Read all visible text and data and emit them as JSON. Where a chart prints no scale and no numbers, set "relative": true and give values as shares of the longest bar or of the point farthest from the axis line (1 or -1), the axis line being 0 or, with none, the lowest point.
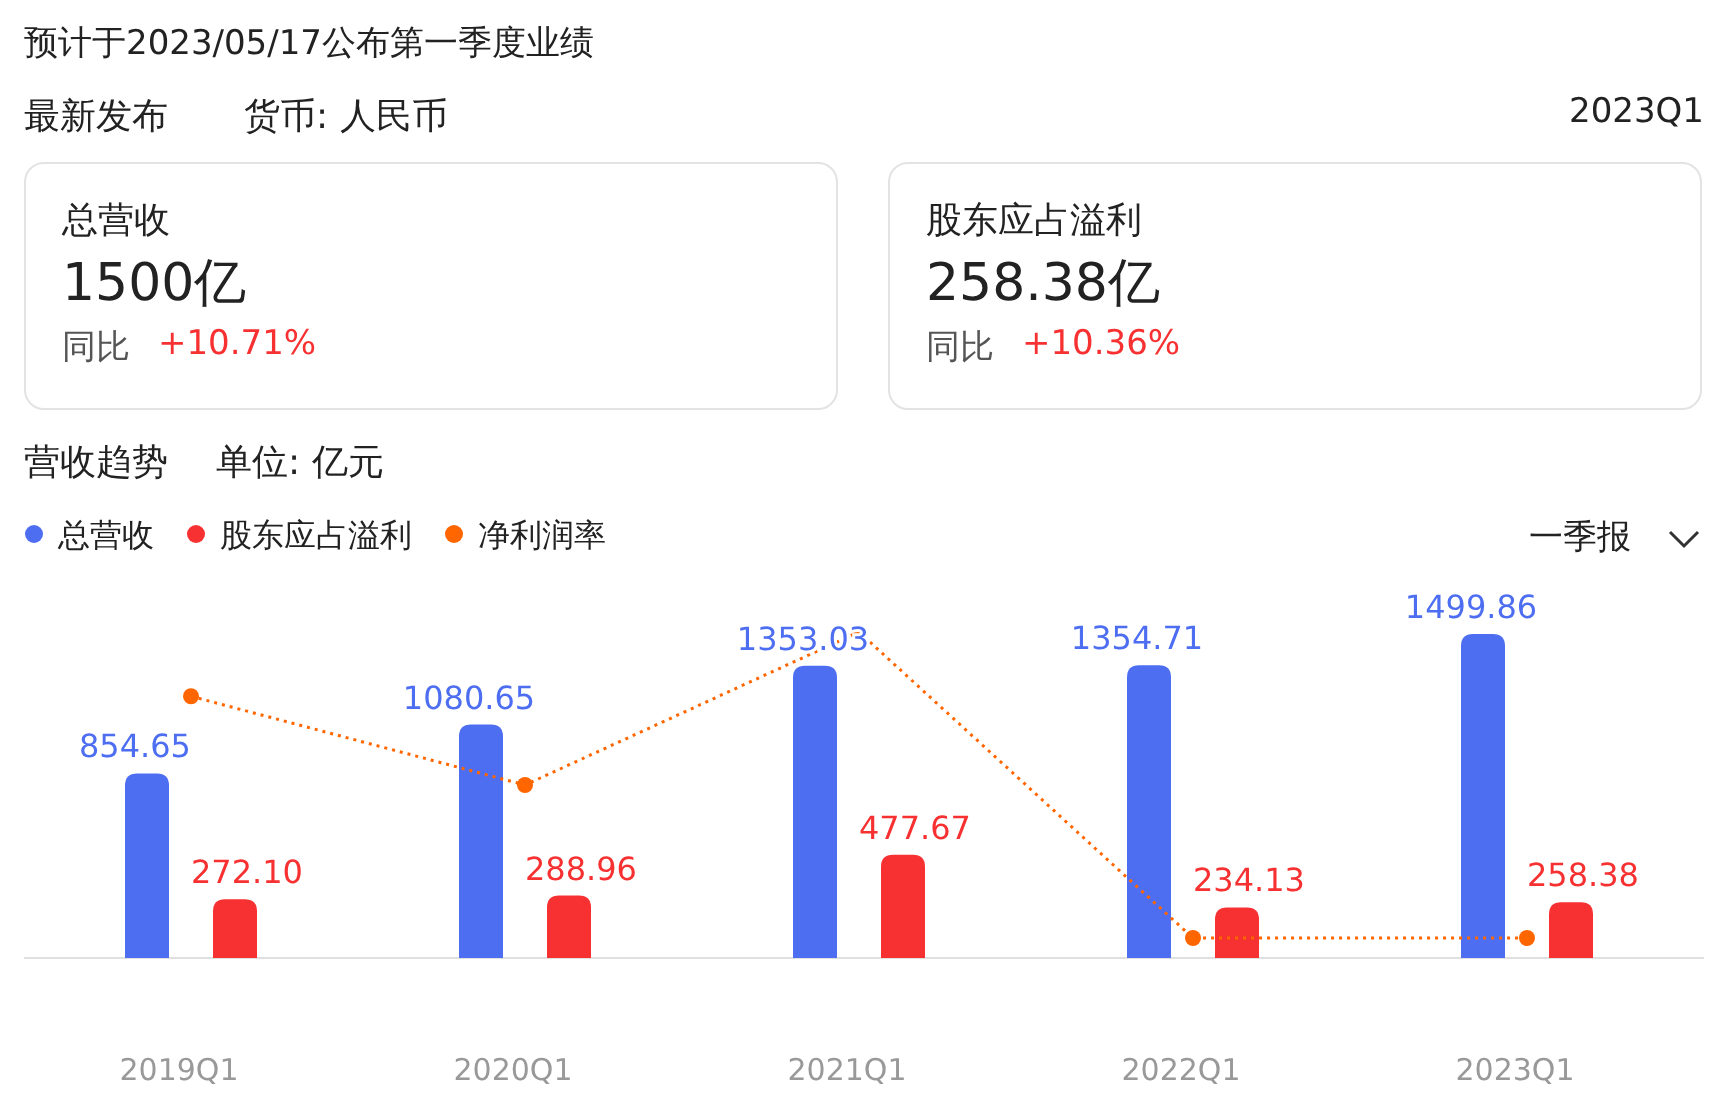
{
  "chart_data": [
    {
      "type": "other",
      "title": "预计于2023/05/17公布第一季度业绩",
      "annotations": [
        "最新发布",
        "货币: 人民币",
        "2023Q1"
      ]
    },
    {
      "type": "other",
      "title": "总营收",
      "annotations": [
        "1500亿",
        "同比",
        "+10.71%"
      ]
    },
    {
      "type": "other",
      "title": "股东应占溢利",
      "annotations": [
        "258.38亿",
        "同比",
        "+10.36%"
      ]
    },
    {
      "type": "bar",
      "title": "营收趋势",
      "subtitle": "单位: 亿元",
      "annotations": [
        "一季报"
      ],
      "legend": "top left",
      "categories": [
        "2019Q1",
        "2020Q1",
        "2021Q1",
        "2022Q1",
        "2023Q1"
      ],
      "series": [
        {
          "name": "总营收",
          "color": "#4e6ef2",
          "values": [
            854.65,
            1080.65,
            1353.03,
            1354.71,
            1499.86
          ],
          "value_labels": [
            "854.65",
            "1080.65",
            "1353.03",
            "1354.71",
            "1499.86"
          ]
        },
        {
          "name": "股东应占溢利",
          "color": "#f73131",
          "values": [
            272.1,
            288.96,
            477.67,
            234.13,
            258.38
          ],
          "value_labels": [
            "272.10",
            "288.96",
            "477.67",
            "234.13",
            "258.38"
          ]
        }
      ]
    },
    {
      "type": "line",
      "relative": true,
      "legend": "top left",
      "line_style": "dotted",
      "marker": "circle",
      "series": [
        {
          "name": "净利润率",
          "color": "#ff6600",
          "values": [
            0.79,
            0.5,
            1,
            0,
            0
          ]
        }
      ]
    }
  ]
}
